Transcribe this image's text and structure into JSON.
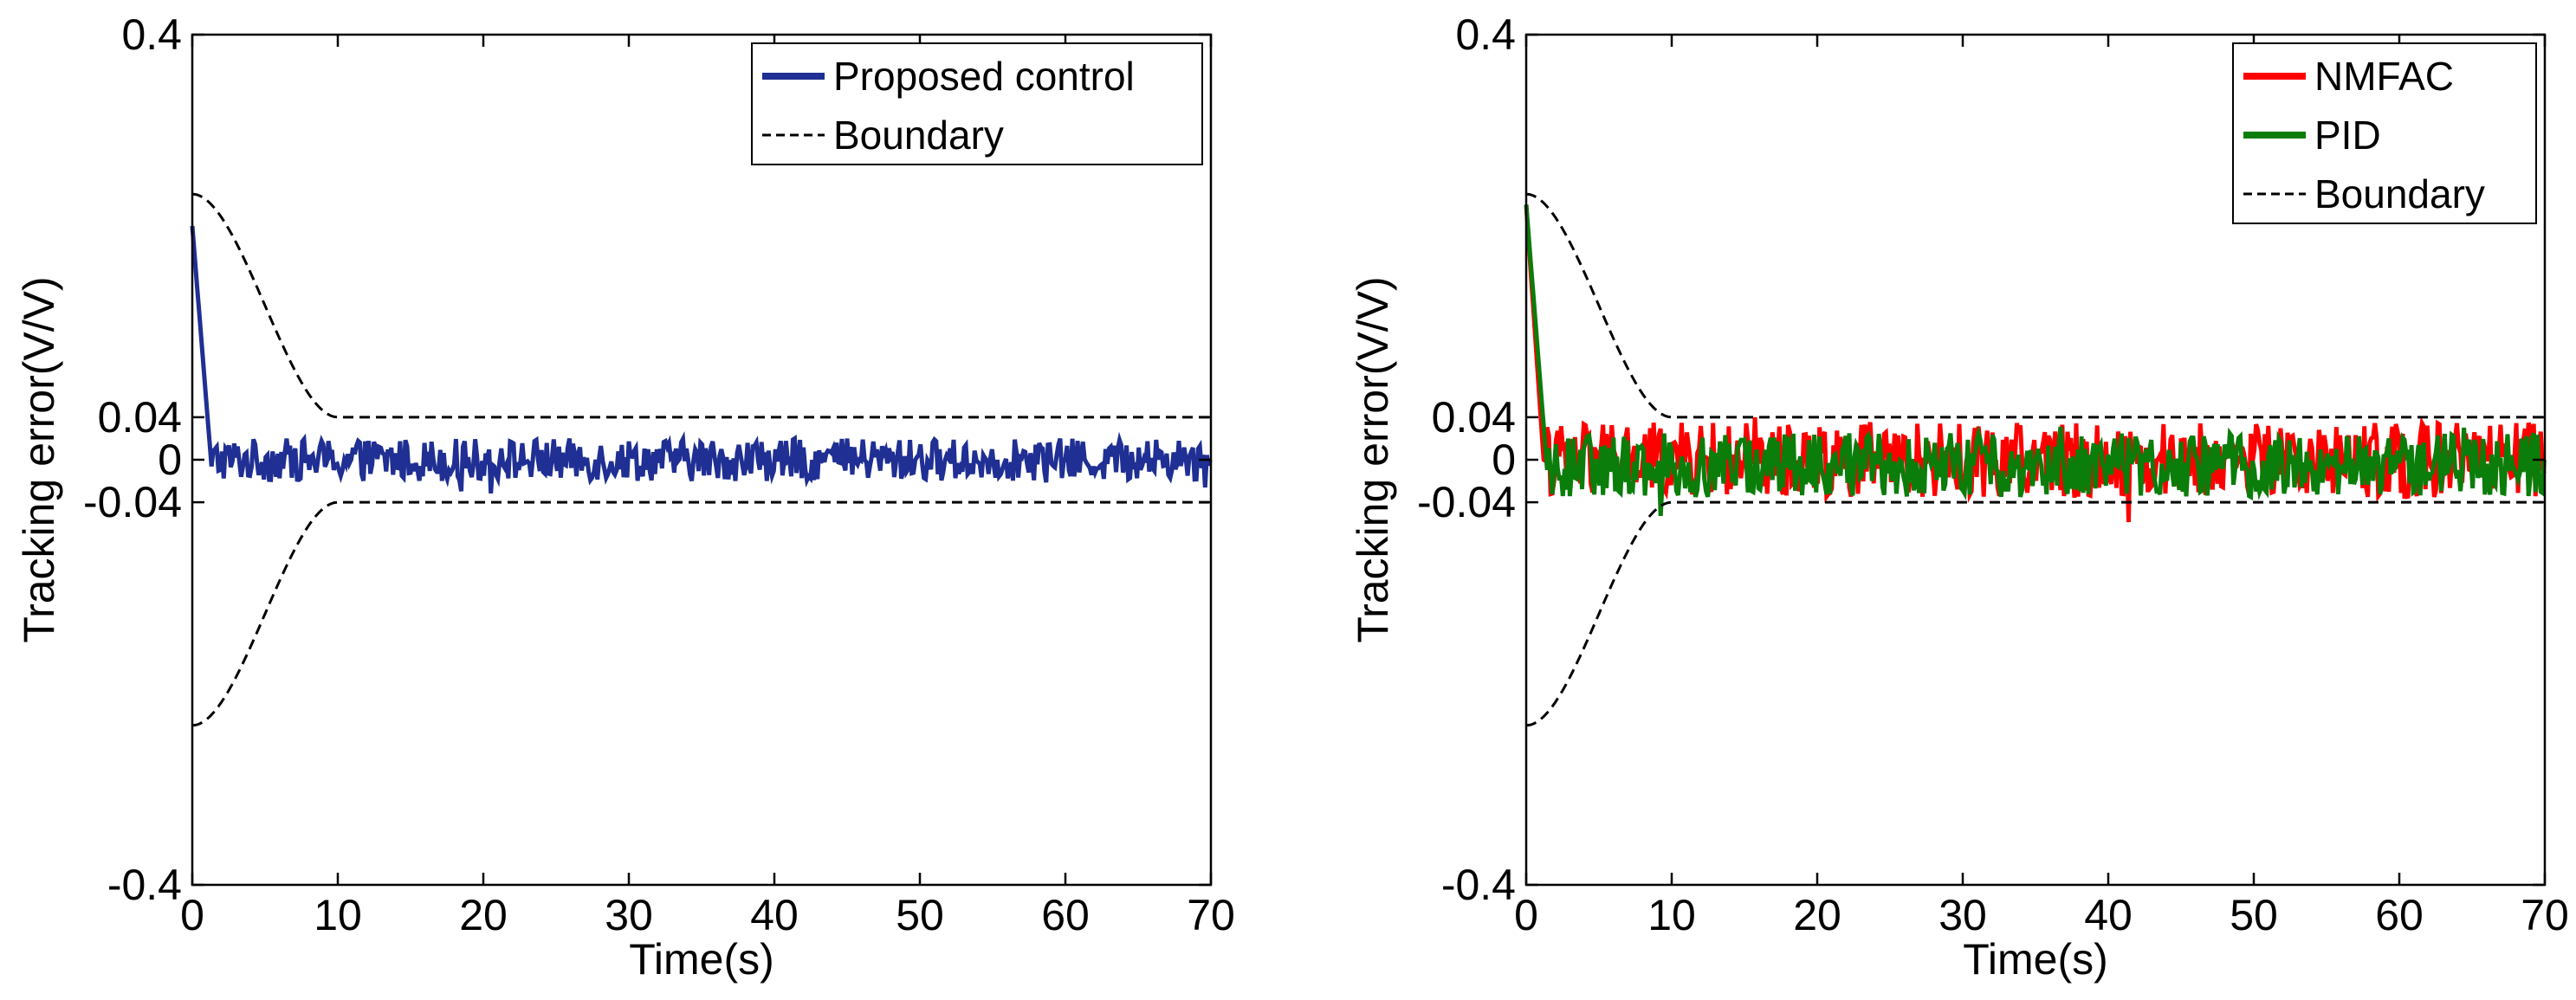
{
  "chart_data": [
    {
      "type": "line",
      "xlabel": "Time(s)",
      "ylabel": "Tracking error(V/V)",
      "xlim": [
        0,
        70
      ],
      "ylim": [
        -0.4,
        0.4
      ],
      "xticks": [
        0,
        10,
        20,
        30,
        40,
        50,
        60,
        70
      ],
      "xtick_labels": [
        "0",
        "10",
        "20",
        "30",
        "40",
        "50",
        "60",
        "70"
      ],
      "yticks": [
        -0.4,
        -0.04,
        0,
        0.04,
        0.4
      ],
      "ytick_labels": [
        "-0.4",
        "-0.04",
        "0",
        "0.04",
        "0.4"
      ],
      "grid": false,
      "legend_position": "top-right",
      "legend": [
        "Proposed control",
        "Boundary"
      ],
      "boundary": {
        "name": "Boundary",
        "color": "#000000",
        "style": "dashed",
        "initial": 0.25,
        "final": 0.04,
        "t_transition": [
          0,
          10
        ]
      },
      "series": [
        {
          "name": "Proposed control",
          "color": "#1f2f93",
          "initial": 0.22,
          "settle_time": 1.4,
          "steady_band": [
            -0.025,
            0.025
          ],
          "noise_amplitude": 0.02
        }
      ]
    },
    {
      "type": "line",
      "xlabel": "Time(s)",
      "ylabel": "Tracking error(V/V)",
      "xlim": [
        0,
        70
      ],
      "ylim": [
        -0.4,
        0.4
      ],
      "xticks": [
        0,
        10,
        20,
        30,
        40,
        50,
        60,
        70
      ],
      "xtick_labels": [
        "0",
        "10",
        "20",
        "30",
        "40",
        "50",
        "60",
        "70"
      ],
      "yticks": [
        -0.4,
        -0.04,
        0,
        0.04,
        0.4
      ],
      "ytick_labels": [
        "-0.4",
        "-0.04",
        "0",
        "0.04",
        "0.4"
      ],
      "grid": false,
      "legend_position": "top-right",
      "legend": [
        "NMFAC",
        "PID",
        "Boundary"
      ],
      "boundary": {
        "name": "Boundary",
        "color": "#000000",
        "style": "dashed",
        "initial": 0.25,
        "final": 0.04,
        "t_transition": [
          0,
          10
        ]
      },
      "series": [
        {
          "name": "NMFAC",
          "color": "#ff0000",
          "initial": 0.24,
          "settle_time": 1.3,
          "steady_band": [
            -0.05,
            0.05
          ],
          "noise_amplitude": 0.035
        },
        {
          "name": "PID",
          "color": "#0a7d0a",
          "initial": 0.24,
          "settle_time": 1.5,
          "steady_band": [
            -0.06,
            0.05
          ],
          "noise_amplitude": 0.03
        }
      ]
    }
  ]
}
